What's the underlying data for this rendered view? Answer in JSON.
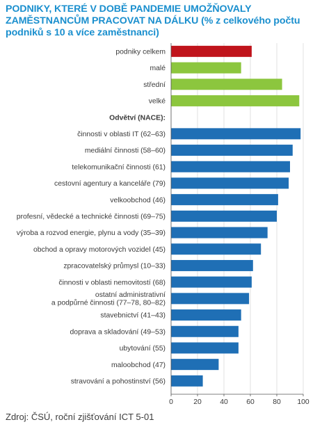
{
  "title": "PODNIKY, KTERÉ V DOBĚ PANDEMIE UMOŽŇOVALY ZAMĚSTNANCŮM PRACOVAT NA DÁLKU (% z celkového počtu podniků s 10 a více zaměstnanci)",
  "source": "Zdroj: ČSÚ, roční zjišťování ICT 5-01",
  "colors": {
    "total": "#c0141c",
    "size": "#8cc63e",
    "sector": "#1f6fb5",
    "title": "#1a8fce"
  },
  "chart_data": {
    "type": "bar",
    "orientation": "horizontal",
    "title": "PODNIKY, KTERÉ V DOBĚ PANDEMIE UMOŽŇOVALY ZAMĚSTNANCŮM PRACOVAT NA DÁLKU (% z celkového počtu podniků s 10 a více zaměstnanci)",
    "xlim": [
      0,
      100
    ],
    "xticks": [
      0,
      20,
      40,
      60,
      80,
      100
    ],
    "grid": true,
    "rows": [
      {
        "label": [
          "podniky celkem"
        ],
        "value": 61,
        "group": "total"
      },
      {
        "label": [
          "malé"
        ],
        "value": 53,
        "group": "size"
      },
      {
        "label": [
          "střední"
        ],
        "value": 84,
        "group": "size"
      },
      {
        "label": [
          "velké"
        ],
        "value": 97,
        "group": "size"
      },
      {
        "label": [
          "Odvětví (NACE):"
        ],
        "value": null,
        "group": "heading"
      },
      {
        "label": [
          "činnosti v oblasti IT (62–63)"
        ],
        "value": 98,
        "group": "sector"
      },
      {
        "label": [
          "mediální činnosti (58–60)"
        ],
        "value": 92,
        "group": "sector"
      },
      {
        "label": [
          "telekomunikační činnosti (61)"
        ],
        "value": 90,
        "group": "sector"
      },
      {
        "label": [
          "cestovní agentury a kanceláře (79)"
        ],
        "value": 89,
        "group": "sector"
      },
      {
        "label": [
          "velkoobchod (46)"
        ],
        "value": 81,
        "group": "sector"
      },
      {
        "label": [
          "profesní, vědecké a technické činnosti (69–75)"
        ],
        "value": 80,
        "group": "sector"
      },
      {
        "label": [
          "výroba a rozvod energie, plynu a vody (35–39)"
        ],
        "value": 73,
        "group": "sector"
      },
      {
        "label": [
          "obchod a opravy motorových vozidel (45)"
        ],
        "value": 68,
        "group": "sector"
      },
      {
        "label": [
          "zpracovatelský průmysl (10–33)"
        ],
        "value": 62,
        "group": "sector"
      },
      {
        "label": [
          "činnosti v oblasti nemovitostí (68)"
        ],
        "value": 61,
        "group": "sector"
      },
      {
        "label": [
          "ostatní administrativní",
          "a podpůrné činnosti (77–78, 80–82)"
        ],
        "value": 59,
        "group": "sector"
      },
      {
        "label": [
          "stavebnictví (41–43)"
        ],
        "value": 53,
        "group": "sector"
      },
      {
        "label": [
          "doprava a skladování (49–53)"
        ],
        "value": 51,
        "group": "sector"
      },
      {
        "label": [
          "ubytování (55)"
        ],
        "value": 51,
        "group": "sector"
      },
      {
        "label": [
          "maloobchod (47)"
        ],
        "value": 36,
        "group": "sector"
      },
      {
        "label": [
          "stravování a pohostinství (56)"
        ],
        "value": 24,
        "group": "sector"
      }
    ]
  }
}
